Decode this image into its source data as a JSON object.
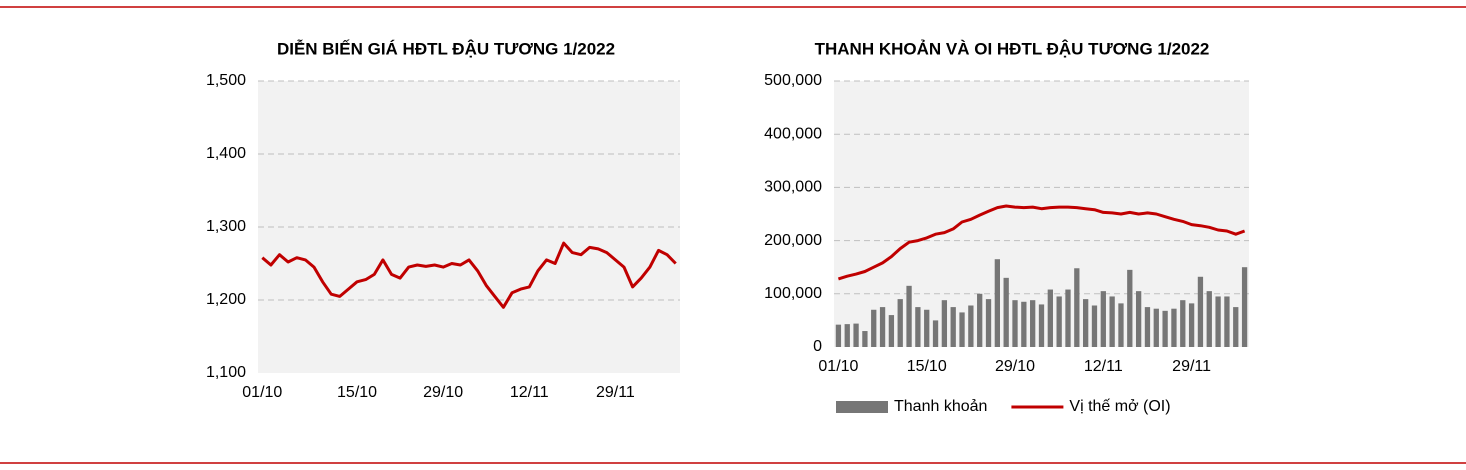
{
  "chart_data": [
    {
      "type": "line",
      "title": "DIỄN BIẾN GIÁ HĐTL ĐẬU TƯƠNG 1/2022",
      "categories": [
        "01/10",
        null,
        null,
        null,
        null,
        null,
        null,
        null,
        null,
        null,
        null,
        "15/10",
        null,
        null,
        null,
        null,
        null,
        null,
        null,
        null,
        null,
        "29/10",
        null,
        null,
        null,
        null,
        null,
        null,
        null,
        null,
        null,
        "12/11",
        null,
        null,
        null,
        null,
        null,
        null,
        null,
        null,
        null,
        "29/11",
        null,
        null,
        null,
        null,
        null,
        null,
        null
      ],
      "series": [
        {
          "name": null,
          "color": "#c00000",
          "values": [
            1258,
            1248,
            1262,
            1252,
            1258,
            1255,
            1245,
            1225,
            1208,
            1205,
            1215,
            1225,
            1228,
            1235,
            1255,
            1235,
            1230,
            1245,
            1248,
            1246,
            1248,
            1245,
            1250,
            1248,
            1255,
            1240,
            1220,
            1205,
            1190,
            1210,
            1215,
            1218,
            1240,
            1255,
            1250,
            1278,
            1265,
            1262,
            1272,
            1270,
            1265,
            1255,
            1245,
            1218,
            1230,
            1245,
            1268,
            1262,
            1250
          ]
        }
      ],
      "ylim": [
        1100,
        1500
      ],
      "yticks": [
        {
          "value": 1100,
          "label": "1,100"
        },
        {
          "value": 1200,
          "label": "1,200"
        },
        {
          "value": 1300,
          "label": "1,300"
        },
        {
          "value": 1400,
          "label": "1,400"
        },
        {
          "value": 1500,
          "label": "1,500"
        }
      ],
      "grid": true
    },
    {
      "type": "bar",
      "title": "THANH KHOẢN VÀ OI HĐTL ĐẬU TƯƠNG 1/2022",
      "categories": [
        "01/10",
        null,
        null,
        null,
        null,
        null,
        null,
        null,
        null,
        null,
        "15/10",
        null,
        null,
        null,
        null,
        null,
        null,
        null,
        null,
        null,
        "29/10",
        null,
        null,
        null,
        null,
        null,
        null,
        null,
        null,
        null,
        "12/11",
        null,
        null,
        null,
        null,
        null,
        null,
        null,
        null,
        null,
        "29/11",
        null,
        null,
        null,
        null,
        null,
        null
      ],
      "series": [
        {
          "name": "Thanh khoản",
          "type": "bar",
          "color": "#767676",
          "values": [
            42000,
            43000,
            44000,
            30000,
            70000,
            75000,
            60000,
            90000,
            115000,
            75000,
            70000,
            50000,
            88000,
            75000,
            65000,
            78000,
            100000,
            90000,
            165000,
            130000,
            88000,
            85000,
            88000,
            80000,
            108000,
            95000,
            108000,
            148000,
            90000,
            78000,
            105000,
            95000,
            82000,
            145000,
            105000,
            75000,
            72000,
            68000,
            72000,
            88000,
            82000,
            132000,
            105000,
            95000,
            95000,
            75000,
            150000
          ]
        },
        {
          "name": "Vị thế mở (OI)",
          "type": "line",
          "color": "#c00000",
          "values": [
            128000,
            133000,
            137000,
            142000,
            150000,
            158000,
            170000,
            185000,
            197000,
            200000,
            205000,
            212000,
            215000,
            222000,
            235000,
            240000,
            248000,
            255000,
            262000,
            265000,
            263000,
            262000,
            263000,
            260000,
            262000,
            263000,
            263000,
            262000,
            260000,
            258000,
            253000,
            252000,
            250000,
            253000,
            250000,
            252000,
            250000,
            245000,
            240000,
            236000,
            230000,
            228000,
            225000,
            220000,
            218000,
            212000,
            218000
          ]
        }
      ],
      "ylim": [
        0,
        500000
      ],
      "yticks": [
        0,
        {
          "value": 100000,
          "label": "100,000"
        },
        {
          "value": 200000,
          "label": "200,000"
        },
        {
          "value": 300000,
          "label": "300,000"
        },
        {
          "value": 400000,
          "label": "400,000"
        },
        {
          "value": 500000,
          "label": "500,000"
        }
      ],
      "grid": true,
      "legend": "bottom"
    }
  ]
}
